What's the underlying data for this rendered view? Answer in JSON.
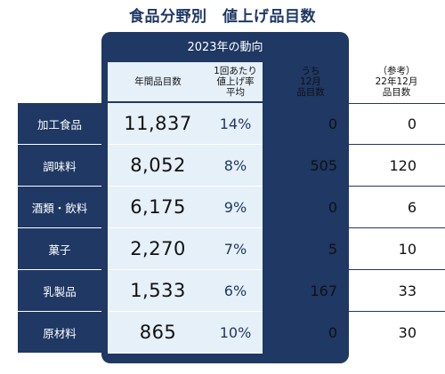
{
  "title": "食品分野別　値上げ品目数",
  "panel_title": "2023年の動向",
  "headers": {
    "annual": "年間品目数",
    "rate": "1回あたり\n値上げ率\n平均",
    "december": "うち\n12月\n品目数",
    "reference": "（参考）\n22年12月\n品目数"
  },
  "rows": [
    {
      "category": "加工食品",
      "annual": "11,837",
      "rate": "14%",
      "december": "0",
      "reference": "0"
    },
    {
      "category": "調味料",
      "annual": "8,052",
      "rate": "8%",
      "december": "505",
      "reference": "120"
    },
    {
      "category": "酒類・飲料",
      "annual": "6,175",
      "rate": "9%",
      "december": "0",
      "reference": "6"
    },
    {
      "category": "菓子",
      "annual": "2,270",
      "rate": "7%",
      "december": "5",
      "reference": "10"
    },
    {
      "category": "乳製品",
      "annual": "1,533",
      "rate": "6%",
      "december": "167",
      "reference": "33"
    },
    {
      "category": "原材料",
      "annual": "865",
      "rate": "10%",
      "december": "0",
      "reference": "30"
    }
  ],
  "colors": {
    "navy": "#1f3864",
    "light_blue": "#e6f0f9"
  }
}
